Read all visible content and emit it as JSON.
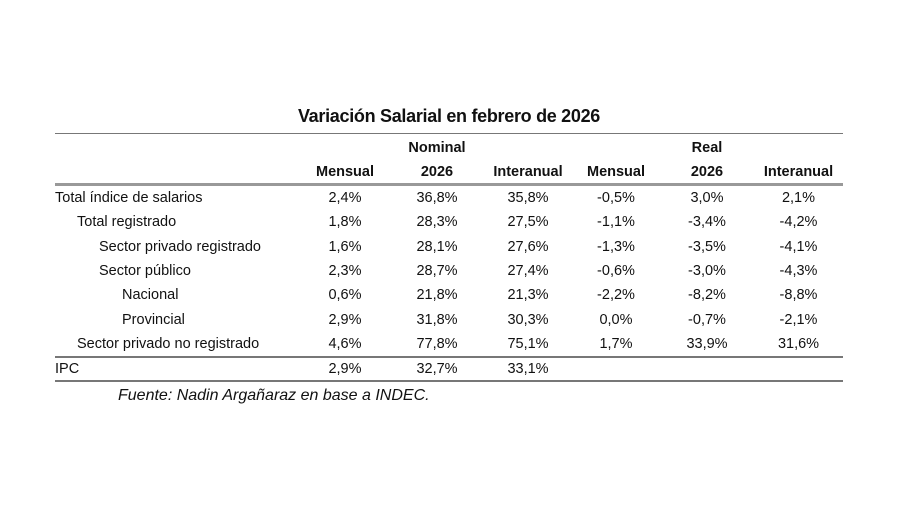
{
  "title": "Variación Salarial en febrero de 2026",
  "group_headers": {
    "nominal": "Nominal",
    "real": "Real"
  },
  "columns": [
    "Mensual",
    "2026",
    "Interanual",
    "Mensual",
    "2026",
    "Interanual"
  ],
  "rows": [
    {
      "label": "Total índice de salarios",
      "indent": 0,
      "values": [
        "2,4%",
        "36,8%",
        "35,8%",
        "-0,5%",
        "3,0%",
        "2,1%"
      ]
    },
    {
      "label": "Total registrado",
      "indent": 1,
      "values": [
        "1,8%",
        "28,3%",
        "27,5%",
        "-1,1%",
        "-3,4%",
        "-4,2%"
      ]
    },
    {
      "label": "Sector privado registrado",
      "indent": 2,
      "values": [
        "1,6%",
        "28,1%",
        "27,6%",
        "-1,3%",
        "-3,5%",
        "-4,1%"
      ]
    },
    {
      "label": "Sector público",
      "indent": 2,
      "values": [
        "2,3%",
        "28,7%",
        "27,4%",
        "-0,6%",
        "-3,0%",
        "-4,3%"
      ]
    },
    {
      "label": "Nacional",
      "indent": 3,
      "values": [
        "0,6%",
        "21,8%",
        "21,3%",
        "-2,2%",
        "-8,2%",
        "-8,8%"
      ]
    },
    {
      "label": "Provincial",
      "indent": 3,
      "values": [
        "2,9%",
        "31,8%",
        "30,3%",
        "0,0%",
        "-0,7%",
        "-2,1%"
      ]
    },
    {
      "label": "Sector privado no registrado",
      "indent": 1,
      "values": [
        "4,6%",
        "77,8%",
        "75,1%",
        "1,7%",
        "33,9%",
        "31,6%"
      ]
    }
  ],
  "ipc": {
    "label": "IPC",
    "values": [
      "2,9%",
      "32,7%",
      "33,1%",
      "",
      "",
      ""
    ]
  },
  "source": "Fuente: Nadin Argañaraz en base a INDEC."
}
